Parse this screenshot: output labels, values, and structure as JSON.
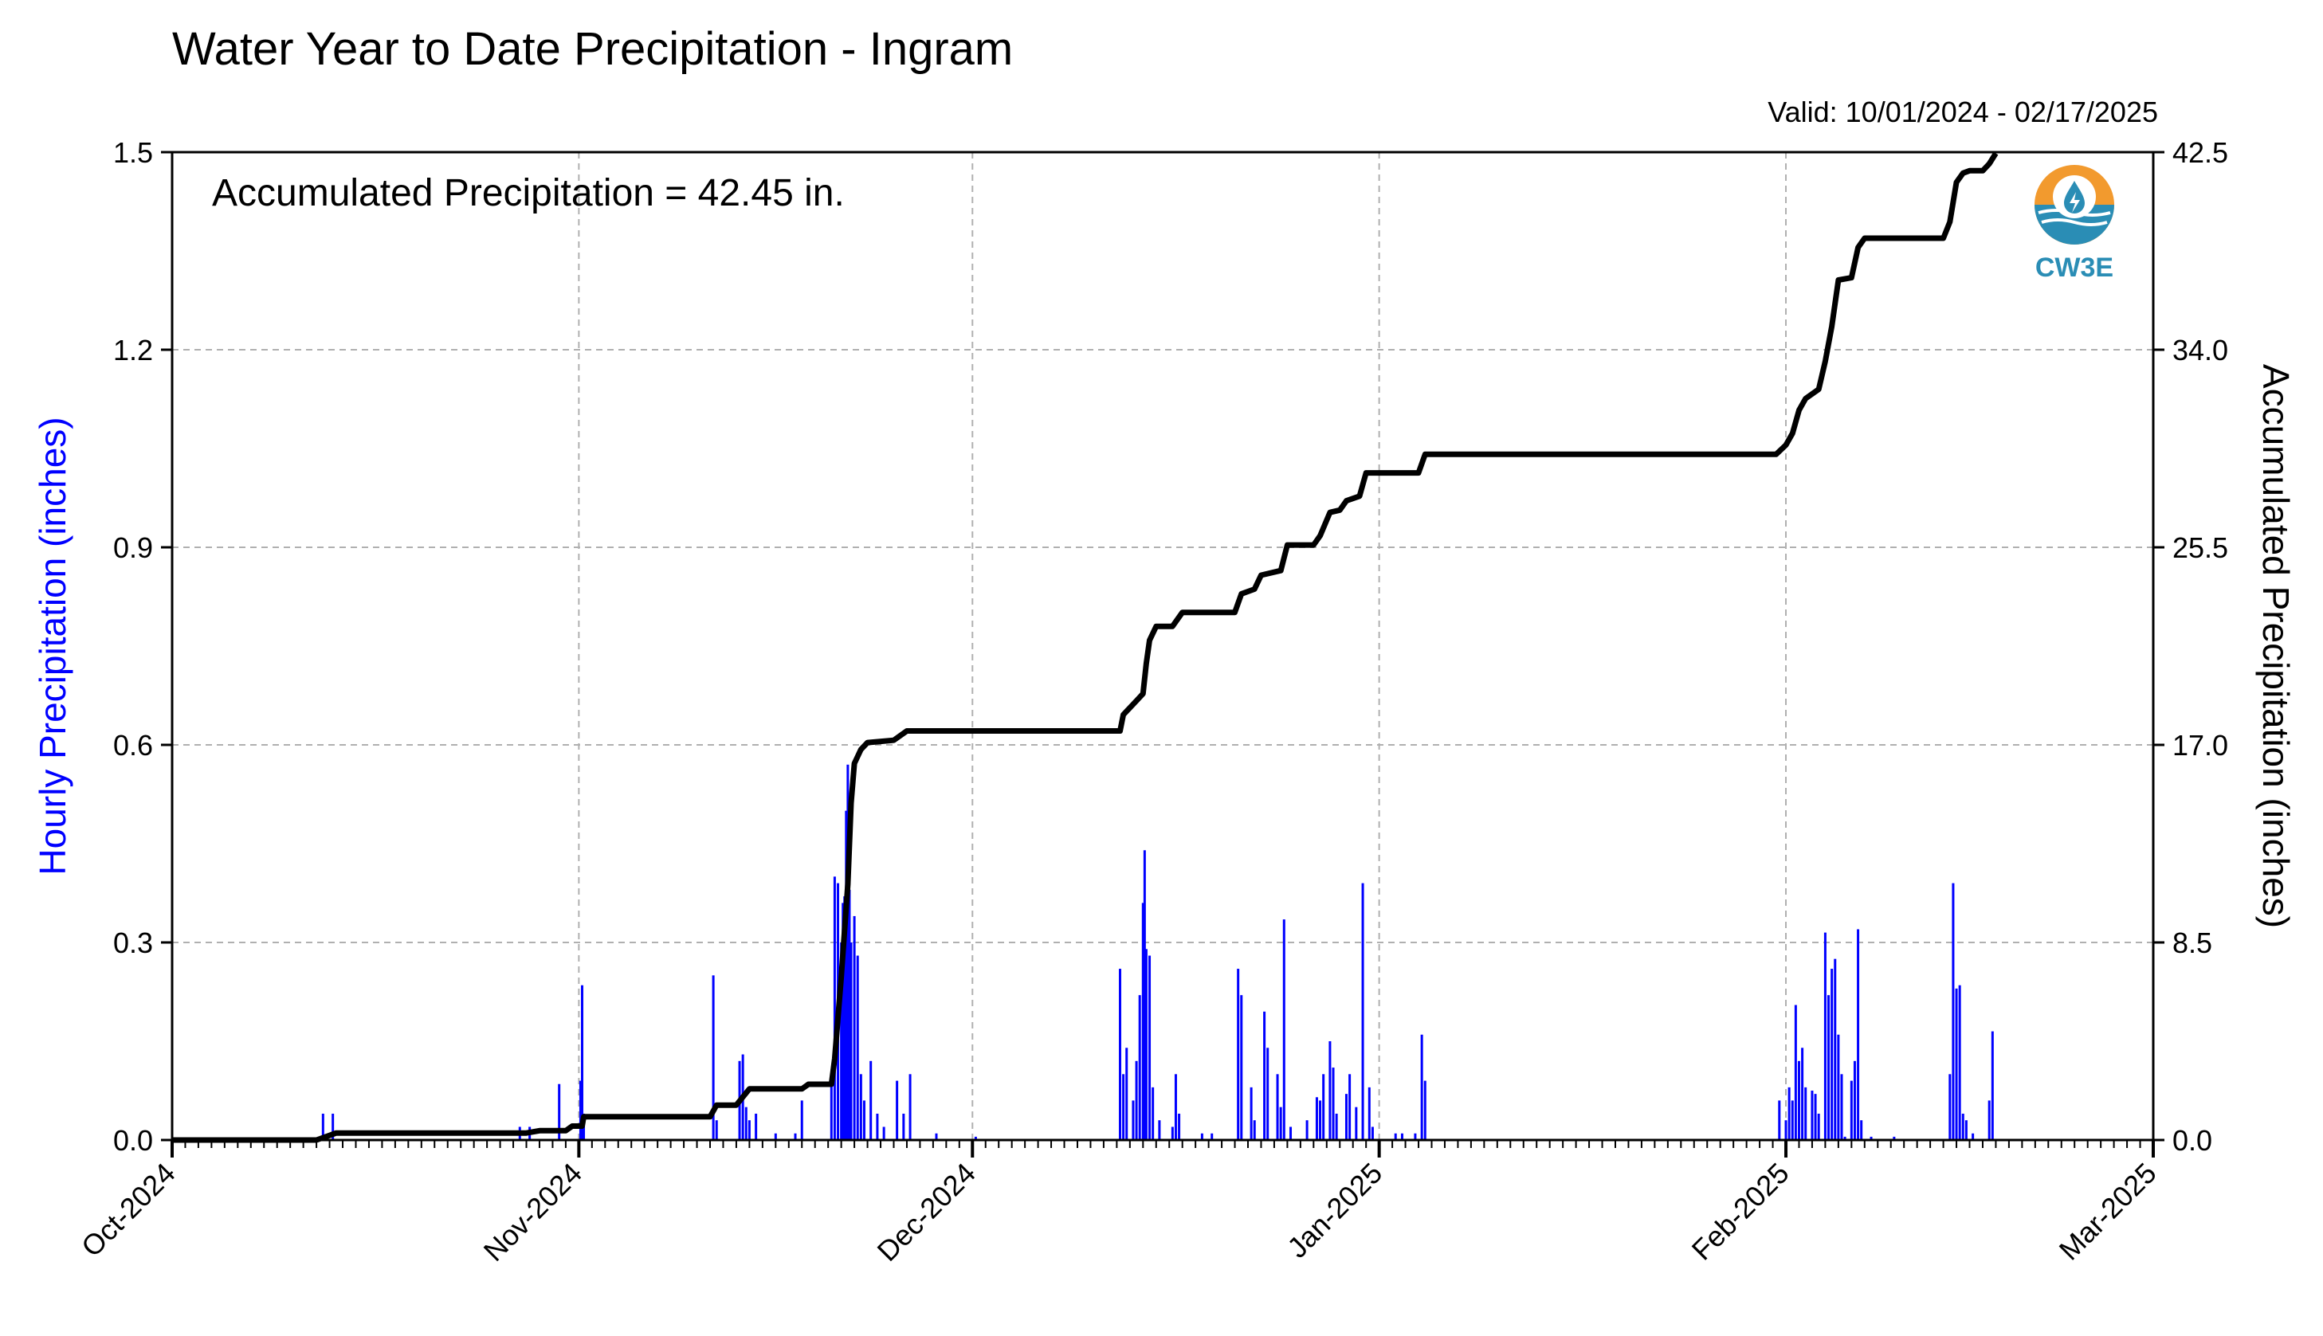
{
  "header": {
    "title": "Water Year to Date Precipitation - Ingram",
    "valid": "Valid: 10/01/2024 - 02/17/2025"
  },
  "logo": {
    "text": "CW3E",
    "icon": "water-drop-sun-icon"
  },
  "annotation": "Accumulated Precipitation = 42.45 in.",
  "colors": {
    "hourly": "#0000ff",
    "accum": "#000000",
    "grid": "#b0b0b0"
  },
  "chart_data": {
    "type": "bar",
    "title": "Water Year to Date Precipitation - Ingram",
    "xlabel": "",
    "ylabel": "Hourly Precipitation (inches)",
    "y2label": "Accumulated Precipitation (inches)",
    "xlim": [
      "2024-10-01",
      "2025-03-01"
    ],
    "ylim": [
      0,
      1.5
    ],
    "y2lim": [
      0,
      42.5
    ],
    "grid": true,
    "x_ticks": [
      "Oct-2024",
      "Nov-2024",
      "Dec-2024",
      "Jan-2025",
      "Feb-2025",
      "Mar-2025"
    ],
    "x_tick_dates": [
      "2024-10-01",
      "2024-11-01",
      "2024-12-01",
      "2025-01-01",
      "2025-02-01",
      "2025-03-01"
    ],
    "y_ticks": [
      "0.0",
      "0.3",
      "0.6",
      "0.9",
      "1.2",
      "1.5"
    ],
    "y2_ticks": [
      "0.0",
      "8.5",
      "17.0",
      "25.5",
      "34.0",
      "42.5"
    ],
    "series": [
      {
        "name": "Hourly Precipitation",
        "type": "bar",
        "points": [
          [
            "2024-10-12 12:00",
            0.04
          ],
          [
            "2024-10-13 06:00",
            0.04
          ],
          [
            "2024-10-27 12:00",
            0.02
          ],
          [
            "2024-10-28 06:00",
            0.02
          ],
          [
            "2024-10-30 12:00",
            0.085
          ],
          [
            "2024-11-01 03:00",
            0.09
          ],
          [
            "2024-11-01 06:00",
            0.235
          ],
          [
            "2024-11-01 09:00",
            0.04
          ],
          [
            "2024-11-11 06:00",
            0.25
          ],
          [
            "2024-11-11 12:00",
            0.03
          ],
          [
            "2024-11-13 06:00",
            0.12
          ],
          [
            "2024-11-13 12:00",
            0.13
          ],
          [
            "2024-11-13 18:00",
            0.05
          ],
          [
            "2024-11-14 00:00",
            0.03
          ],
          [
            "2024-11-14 12:00",
            0.04
          ],
          [
            "2024-11-16 00:00",
            0.01
          ],
          [
            "2024-11-17 12:00",
            0.01
          ],
          [
            "2024-11-18 00:00",
            0.06
          ],
          [
            "2024-11-20 06:00",
            0.1
          ],
          [
            "2024-11-20 12:00",
            0.4
          ],
          [
            "2024-11-20 18:00",
            0.39
          ],
          [
            "2024-11-21 00:00",
            0.3
          ],
          [
            "2024-11-21 03:00",
            0.36
          ],
          [
            "2024-11-21 06:00",
            0.37
          ],
          [
            "2024-11-21 09:00",
            0.5
          ],
          [
            "2024-11-21 12:00",
            0.57
          ],
          [
            "2024-11-21 15:00",
            0.38
          ],
          [
            "2024-11-21 18:00",
            0.3
          ],
          [
            "2024-11-22 00:00",
            0.34
          ],
          [
            "2024-11-22 06:00",
            0.28
          ],
          [
            "2024-11-22 12:00",
            0.1
          ],
          [
            "2024-11-22 18:00",
            0.06
          ],
          [
            "2024-11-23 06:00",
            0.12
          ],
          [
            "2024-11-23 18:00",
            0.04
          ],
          [
            "2024-11-24 06:00",
            0.02
          ],
          [
            "2024-11-25 06:00",
            0.09
          ],
          [
            "2024-11-25 18:00",
            0.04
          ],
          [
            "2024-11-26 06:00",
            0.1
          ],
          [
            "2024-11-28 06:00",
            0.01
          ],
          [
            "2024-12-01 06:00",
            0.005
          ],
          [
            "2024-12-12 06:00",
            0.26
          ],
          [
            "2024-12-12 12:00",
            0.1
          ],
          [
            "2024-12-12 18:00",
            0.14
          ],
          [
            "2024-12-13 06:00",
            0.06
          ],
          [
            "2024-12-13 12:00",
            0.12
          ],
          [
            "2024-12-13 18:00",
            0.22
          ],
          [
            "2024-12-14 00:00",
            0.36
          ],
          [
            "2024-12-14 03:00",
            0.44
          ],
          [
            "2024-12-14 06:00",
            0.29
          ],
          [
            "2024-12-14 12:00",
            0.28
          ],
          [
            "2024-12-14 18:00",
            0.08
          ],
          [
            "2024-12-15 06:00",
            0.03
          ],
          [
            "2024-12-16 06:00",
            0.02
          ],
          [
            "2024-12-16 12:00",
            0.1
          ],
          [
            "2024-12-16 18:00",
            0.04
          ],
          [
            "2024-12-18 12:00",
            0.01
          ],
          [
            "2024-12-19 06:00",
            0.01
          ],
          [
            "2024-12-21 06:00",
            0.26
          ],
          [
            "2024-12-21 12:00",
            0.22
          ],
          [
            "2024-12-22 06:00",
            0.08
          ],
          [
            "2024-12-22 12:00",
            0.03
          ],
          [
            "2024-12-23 06:00",
            0.195
          ],
          [
            "2024-12-23 12:00",
            0.14
          ],
          [
            "2024-12-24 06:00",
            0.1
          ],
          [
            "2024-12-24 12:00",
            0.05
          ],
          [
            "2024-12-24 18:00",
            0.335
          ],
          [
            "2024-12-25 06:00",
            0.02
          ],
          [
            "2024-12-26 12:00",
            0.03
          ],
          [
            "2024-12-27 06:00",
            0.065
          ],
          [
            "2024-12-27 12:00",
            0.06
          ],
          [
            "2024-12-27 18:00",
            0.1
          ],
          [
            "2024-12-28 06:00",
            0.15
          ],
          [
            "2024-12-28 12:00",
            0.11
          ],
          [
            "2024-12-28 18:00",
            0.04
          ],
          [
            "2024-12-29 12:00",
            0.07
          ],
          [
            "2024-12-29 18:00",
            0.1
          ],
          [
            "2024-12-30 06:00",
            0.05
          ],
          [
            "2024-12-30 18:00",
            0.39
          ],
          [
            "2024-12-31 06:00",
            0.08
          ],
          [
            "2024-12-31 12:00",
            0.02
          ],
          [
            "2025-01-02 06:00",
            0.01
          ],
          [
            "2025-01-02 18:00",
            0.01
          ],
          [
            "2025-01-03 18:00",
            0.01
          ],
          [
            "2025-01-04 06:00",
            0.16
          ],
          [
            "2025-01-04 12:00",
            0.09
          ],
          [
            "2025-01-31 12:00",
            0.06
          ],
          [
            "2025-02-01 00:00",
            0.03
          ],
          [
            "2025-02-01 06:00",
            0.08
          ],
          [
            "2025-02-01 12:00",
            0.06
          ],
          [
            "2025-02-01 18:00",
            0.205
          ],
          [
            "2025-02-02 00:00",
            0.12
          ],
          [
            "2025-02-02 06:00",
            0.14
          ],
          [
            "2025-02-02 12:00",
            0.08
          ],
          [
            "2025-02-03 00:00",
            0.075
          ],
          [
            "2025-02-03 06:00",
            0.07
          ],
          [
            "2025-02-03 12:00",
            0.04
          ],
          [
            "2025-02-04 00:00",
            0.315
          ],
          [
            "2025-02-04 06:00",
            0.22
          ],
          [
            "2025-02-04 12:00",
            0.26
          ],
          [
            "2025-02-04 18:00",
            0.275
          ],
          [
            "2025-02-05 00:00",
            0.16
          ],
          [
            "2025-02-05 06:00",
            0.1
          ],
          [
            "2025-02-05 12:00",
            0.005
          ],
          [
            "2025-02-06 00:00",
            0.09
          ],
          [
            "2025-02-06 06:00",
            0.12
          ],
          [
            "2025-02-06 12:00",
            0.32
          ],
          [
            "2025-02-06 18:00",
            0.03
          ],
          [
            "2025-02-07 12:00",
            0.005
          ],
          [
            "2025-02-09 06:00",
            0.005
          ],
          [
            "2025-02-13 12:00",
            0.1
          ],
          [
            "2025-02-13 18:00",
            0.39
          ],
          [
            "2025-02-14 00:00",
            0.23
          ],
          [
            "2025-02-14 06:00",
            0.235
          ],
          [
            "2025-02-14 12:00",
            0.04
          ],
          [
            "2025-02-14 18:00",
            0.03
          ],
          [
            "2025-02-15 06:00",
            0.01
          ],
          [
            "2025-02-16 12:00",
            0.06
          ],
          [
            "2025-02-16 18:00",
            0.165
          ]
        ]
      },
      {
        "name": "Accumulated Precipitation",
        "type": "line",
        "axis": "right",
        "points": [
          [
            "2024-10-01 00:00",
            0.0
          ],
          [
            "2024-10-12 00:00",
            0.0
          ],
          [
            "2024-10-13 00:00",
            0.2
          ],
          [
            "2024-10-13 12:00",
            0.3
          ],
          [
            "2024-10-28 00:00",
            0.3
          ],
          [
            "2024-10-29 00:00",
            0.4
          ],
          [
            "2024-10-31 00:00",
            0.4
          ],
          [
            "2024-10-31 12:00",
            0.6
          ],
          [
            "2024-11-01 06:00",
            0.6
          ],
          [
            "2024-11-01 09:00",
            1.0
          ],
          [
            "2024-11-11 00:00",
            1.0
          ],
          [
            "2024-11-11 12:00",
            1.5
          ],
          [
            "2024-11-13 00:00",
            1.5
          ],
          [
            "2024-11-14 00:00",
            2.2
          ],
          [
            "2024-11-18 00:00",
            2.2
          ],
          [
            "2024-11-18 12:00",
            2.4
          ],
          [
            "2024-11-20 06:00",
            2.4
          ],
          [
            "2024-11-20 12:00",
            3.5
          ],
          [
            "2024-11-21 00:00",
            7.0
          ],
          [
            "2024-11-21 12:00",
            11.0
          ],
          [
            "2024-11-21 18:00",
            14.5
          ],
          [
            "2024-11-22 00:00",
            16.2
          ],
          [
            "2024-11-22 12:00",
            16.8
          ],
          [
            "2024-11-23 00:00",
            17.1
          ],
          [
            "2024-11-25 00:00",
            17.2
          ],
          [
            "2024-11-26 00:00",
            17.6
          ],
          [
            "2024-12-01 00:00",
            17.6
          ],
          [
            "2024-12-12 06:00",
            17.6
          ],
          [
            "2024-12-12 12:00",
            18.3
          ],
          [
            "2024-12-13 12:00",
            18.9
          ],
          [
            "2024-12-14 00:00",
            19.2
          ],
          [
            "2024-12-14 06:00",
            20.5
          ],
          [
            "2024-12-14 12:00",
            21.5
          ],
          [
            "2024-12-15 00:00",
            22.1
          ],
          [
            "2024-12-16 06:00",
            22.1
          ],
          [
            "2024-12-17 00:00",
            22.7
          ],
          [
            "2024-12-21 00:00",
            22.7
          ],
          [
            "2024-12-21 12:00",
            23.5
          ],
          [
            "2024-12-22 12:00",
            23.7
          ],
          [
            "2024-12-23 00:00",
            24.3
          ],
          [
            "2024-12-24 12:00",
            24.5
          ],
          [
            "2024-12-25 00:00",
            25.6
          ],
          [
            "2024-12-27 00:00",
            25.6
          ],
          [
            "2024-12-27 12:00",
            26.0
          ],
          [
            "2024-12-28 06:00",
            27.0
          ],
          [
            "2024-12-29 00:00",
            27.1
          ],
          [
            "2024-12-29 12:00",
            27.5
          ],
          [
            "2024-12-30 12:00",
            27.7
          ],
          [
            "2024-12-31 00:00",
            28.7
          ],
          [
            "2025-01-04 00:00",
            28.7
          ],
          [
            "2025-01-04 12:00",
            29.5
          ],
          [
            "2025-01-31 06:00",
            29.5
          ],
          [
            "2025-02-01 00:00",
            29.9
          ],
          [
            "2025-02-01 12:00",
            30.4
          ],
          [
            "2025-02-02 00:00",
            31.4
          ],
          [
            "2025-02-02 12:00",
            31.9
          ],
          [
            "2025-02-03 12:00",
            32.3
          ],
          [
            "2025-02-04 00:00",
            33.5
          ],
          [
            "2025-02-04 12:00",
            35.0
          ],
          [
            "2025-02-05 00:00",
            37.0
          ],
          [
            "2025-02-06 00:00",
            37.1
          ],
          [
            "2025-02-06 12:00",
            38.4
          ],
          [
            "2025-02-07 00:00",
            38.8
          ],
          [
            "2025-02-13 00:00",
            38.8
          ],
          [
            "2025-02-13 12:00",
            39.5
          ],
          [
            "2025-02-14 00:00",
            41.2
          ],
          [
            "2025-02-14 12:00",
            41.6
          ],
          [
            "2025-02-15 00:00",
            41.7
          ],
          [
            "2025-02-16 00:00",
            41.7
          ],
          [
            "2025-02-16 12:00",
            42.0
          ],
          [
            "2025-02-17 00:00",
            42.45
          ]
        ]
      }
    ]
  }
}
